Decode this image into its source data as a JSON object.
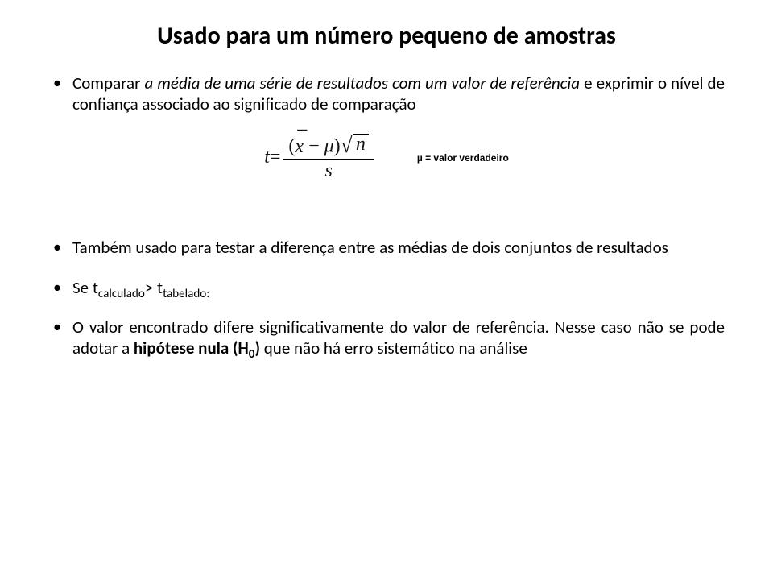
{
  "title": "Usado para um número pequeno de amostras",
  "bullets": {
    "b1_pre": "Comparar ",
    "b1_em": "a média de uma série de resultados com um valor de referência",
    "b1_post": " e exprimir o nível de confiança associado ao significado de comparação",
    "b2": "Também usado para testar a diferença entre as médias de dois conjuntos de resultados",
    "b3_pre": "Se t",
    "b3_sub1": "calculado",
    "b3_mid": "> t",
    "b3_sub2": "tabelado:",
    "b4_pre": "O valor encontrado difere significativamente do valor de referência. Nesse caso não se pode adotar a ",
    "b4_bold": "hipótese nula (H",
    "b4_sub": "0",
    "b4_bold_close": ")",
    "b4_post": " que não há erro sistemático na análise"
  },
  "formula": {
    "t": "t",
    "eq": " = ",
    "lpar": "(",
    "x": "x",
    "minus": " − ",
    "mu": "μ",
    "rpar": ")",
    "n": "n",
    "s": "s"
  },
  "legend": "µ = valor verdadeiro"
}
